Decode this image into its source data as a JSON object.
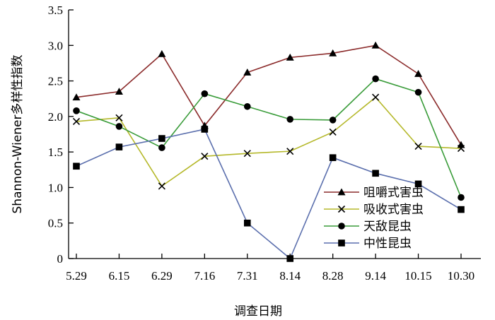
{
  "chart_data": {
    "type": "line",
    "title": "",
    "xlabel": "调查日期",
    "ylabel": "Shannon-Wiener多样性指数",
    "x": [
      "5.29",
      "6.15",
      "6.29",
      "7.16",
      "7.31",
      "8.14",
      "8.28",
      "9.14",
      "10.15",
      "10.30"
    ],
    "ylim": [
      0,
      3.5
    ],
    "yticks": [
      "0",
      "0.5",
      "1.0",
      "1.5",
      "2.0",
      "2.5",
      "3.0",
      "3.5"
    ],
    "grid": false,
    "legend_position": "bottom-right",
    "series": [
      {
        "name": "咀嚼式害虫",
        "marker": "triangle",
        "color": "#8b2b2b",
        "values": [
          2.27,
          2.35,
          2.88,
          1.87,
          2.62,
          2.83,
          2.89,
          3.0,
          2.6,
          1.6
        ]
      },
      {
        "name": "吸收式害虫",
        "marker": "x",
        "color": "#b5b82a",
        "values": [
          1.93,
          1.98,
          1.02,
          1.44,
          1.48,
          1.51,
          1.78,
          2.27,
          1.58,
          1.55
        ]
      },
      {
        "name": "天敌昆虫",
        "marker": "circle",
        "color": "#3a9c3a",
        "values": [
          2.08,
          1.86,
          1.56,
          2.32,
          2.14,
          1.96,
          1.95,
          2.53,
          2.34,
          0.86
        ]
      },
      {
        "name": "中性昆虫",
        "marker": "square",
        "color": "#5b6fad",
        "values": [
          1.3,
          1.57,
          1.69,
          1.82,
          0.5,
          0.0,
          1.42,
          1.2,
          1.05,
          0.69
        ]
      }
    ]
  }
}
